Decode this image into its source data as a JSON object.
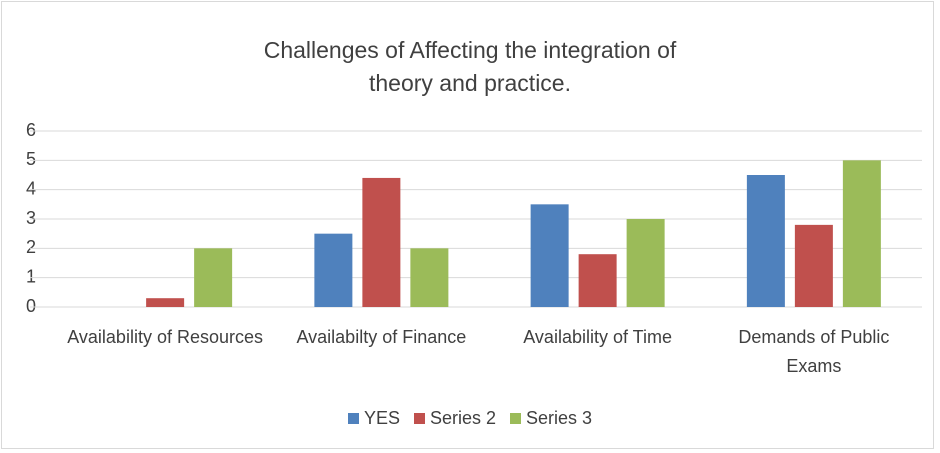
{
  "chart_data": {
    "type": "bar",
    "title": "Challenges of Affecting the integration of theory and practice.",
    "categories": [
      "Availability of Resources",
      "Availabilty of Finance",
      "Availability of Time",
      "Demands of Public Exams"
    ],
    "series": [
      {
        "name": "YES",
        "color": "#4f81bd",
        "values": [
          0,
          2.5,
          3.5,
          4.5
        ]
      },
      {
        "name": "Series 2",
        "color": "#c0504d",
        "values": [
          0.3,
          4.4,
          1.8,
          2.8
        ]
      },
      {
        "name": "Series 3",
        "color": "#9bbb59",
        "values": [
          2,
          2,
          3,
          5
        ]
      }
    ],
    "ylim": [
      0,
      6
    ],
    "yticks": [
      0,
      1,
      2,
      3,
      4,
      5,
      6
    ],
    "grid": true,
    "legend": "bottom"
  }
}
